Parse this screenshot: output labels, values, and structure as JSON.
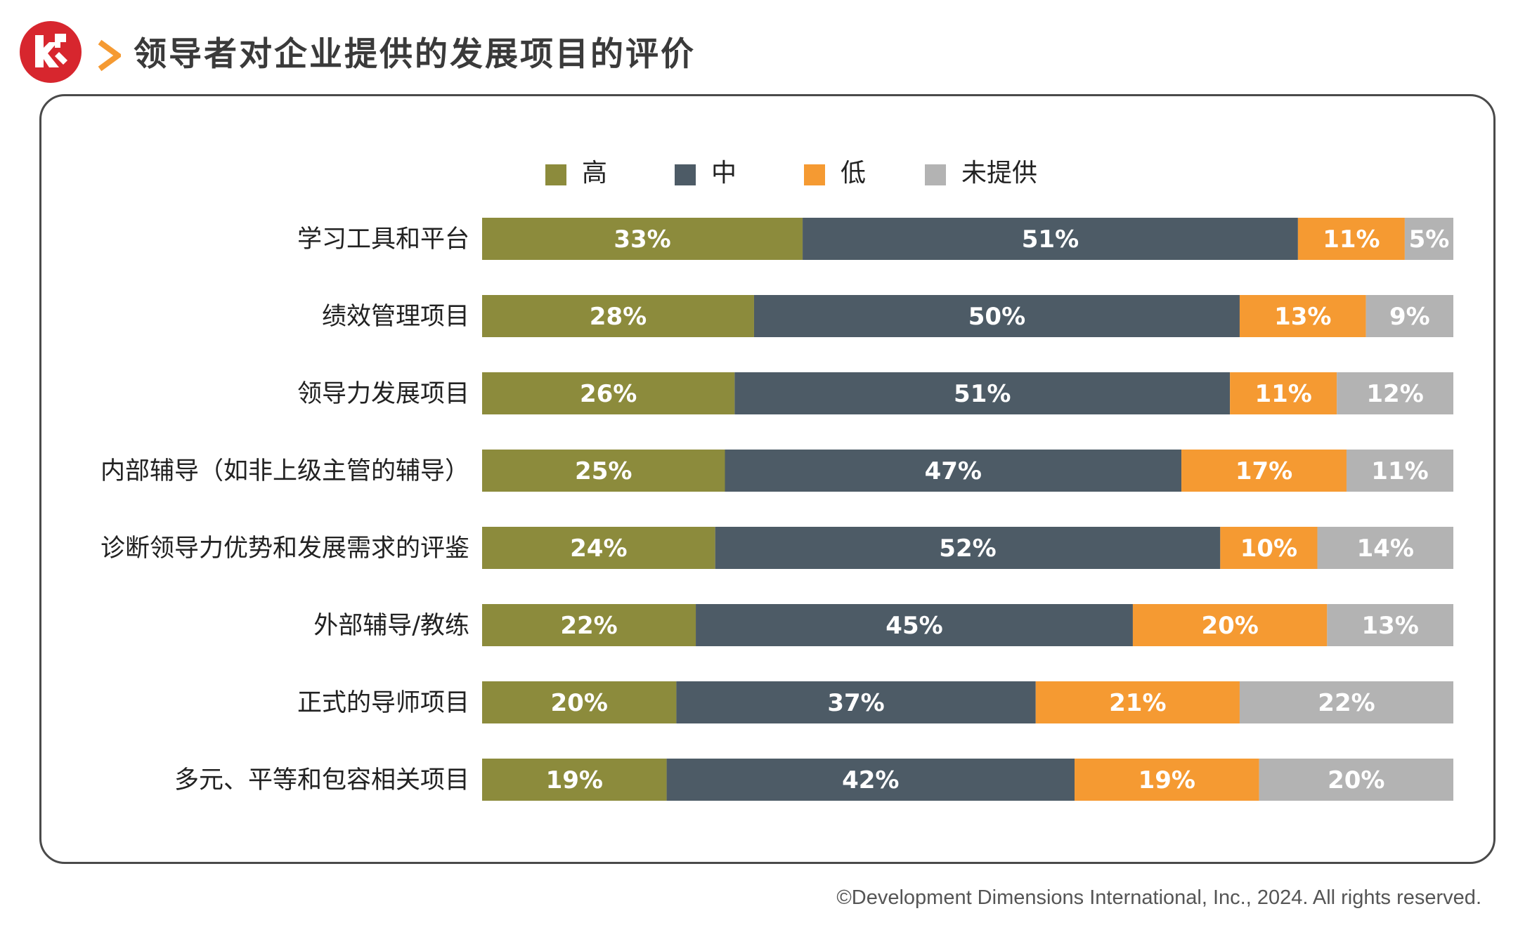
{
  "header": {
    "title": "领导者对企业提供的发展项目的评价"
  },
  "legend": [
    {
      "label": "高",
      "color": "#8c8b3c"
    },
    {
      "label": "中",
      "color": "#4d5b66"
    },
    {
      "label": "低",
      "color": "#f59a32"
    },
    {
      "label": "未提供",
      "color": "#b3b3b3"
    }
  ],
  "footer": {
    "copyright": "©Development Dimensions International, Inc., 2024. All rights reserved."
  },
  "chart_data": {
    "type": "bar",
    "orientation": "horizontal",
    "stacked": true,
    "title": "领导者对企业提供的发展项目的评价",
    "xlabel": "",
    "ylabel": "",
    "xlim": [
      0,
      100
    ],
    "grid": false,
    "legend_position": "top",
    "categories": [
      "学习工具和平台",
      "绩效管理项目",
      "领导力发展项目",
      "内部辅导（如非上级主管的辅导）",
      "诊断领导力优势和发展需求的评鉴",
      "外部辅导/教练",
      "正式的导师项目",
      "多元、平等和包容相关项目"
    ],
    "series": [
      {
        "name": "高",
        "color": "#8c8b3c",
        "values": [
          33,
          28,
          26,
          25,
          24,
          22,
          20,
          19
        ],
        "labels": [
          "33%",
          "28%",
          "26%",
          "25%",
          "24%",
          "22%",
          "20%",
          "19%"
        ]
      },
      {
        "name": "中",
        "color": "#4d5b66",
        "values": [
          51,
          50,
          51,
          47,
          52,
          45,
          37,
          42
        ],
        "labels": [
          "51%",
          "50%",
          "51%",
          "47%",
          "52%",
          "45%",
          "37%",
          "42%"
        ]
      },
      {
        "name": "低",
        "color": "#f59a32",
        "values": [
          11,
          13,
          11,
          17,
          10,
          20,
          21,
          19
        ],
        "labels": [
          "11%",
          "13%",
          "11%",
          "17%",
          "10%",
          "20%",
          "21%",
          "19%"
        ]
      },
      {
        "name": "未提供",
        "color": "#b3b3b3",
        "values": [
          5,
          9,
          12,
          11,
          14,
          13,
          22,
          20
        ],
        "labels": [
          "5%",
          "9%",
          "12%",
          "11%",
          "14%",
          "13%",
          "22%",
          "20%"
        ]
      }
    ]
  }
}
